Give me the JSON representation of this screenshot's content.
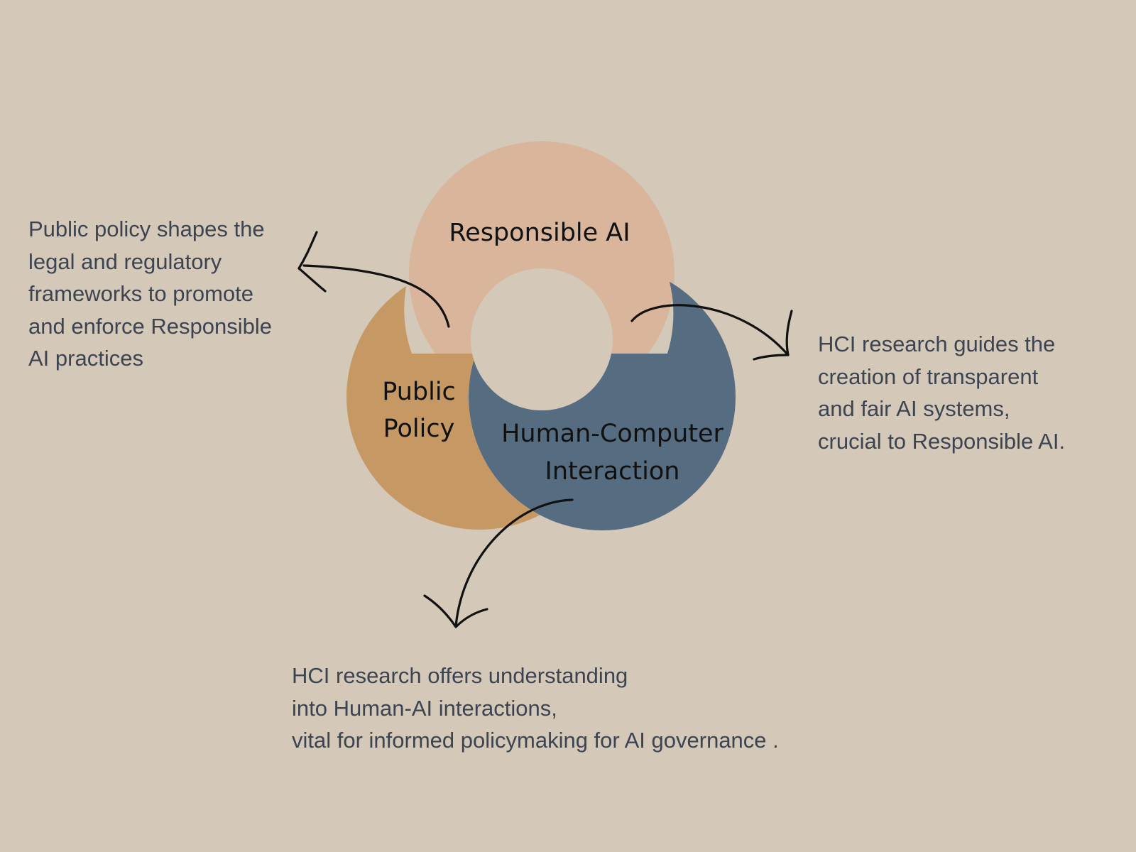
{
  "colors": {
    "background": "#d4c8b8",
    "responsible_ai": "#d9b59b",
    "public_policy": "#c69964",
    "hci": "#566c81",
    "center": "#d4c8b8",
    "arrow": "#111111",
    "description_text": "#3d4451",
    "label_text": "#111111"
  },
  "circles": {
    "responsible_ai": {
      "label": "Responsible AI"
    },
    "public_policy": {
      "lines": [
        "Public",
        "Policy"
      ]
    },
    "hci": {
      "lines": [
        "Human-Computer",
        "Interaction"
      ]
    }
  },
  "descriptions": {
    "policy": {
      "lines": [
        "Public policy shapes the",
        "legal and regulatory",
        "frameworks to promote",
        "and enforce Responsible",
        "AI practices"
      ]
    },
    "hci_design": {
      "lines": [
        "HCI research guides the",
        "creation of transparent",
        "and fair AI systems,",
        "crucial to Responsible AI."
      ]
    },
    "hci_policy": {
      "lines": [
        "HCI research offers understanding",
        "into Human-AI interactions,",
        "vital for informed policymaking for AI governance ."
      ]
    }
  },
  "icons": {
    "policy_arrow": "curved-arrow-left-icon",
    "hci_design_arrow": "curved-arrow-right-icon",
    "hci_policy_arrow": "curved-arrow-down-icon"
  }
}
